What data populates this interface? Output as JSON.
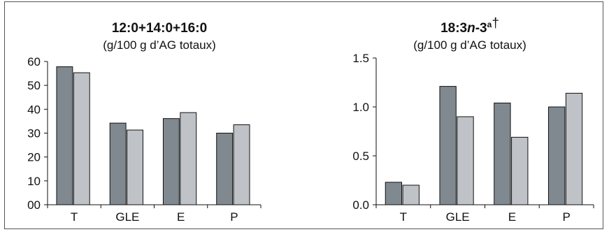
{
  "chart_data": [
    {
      "type": "bar",
      "title_main": "12:0+14:0+16:0",
      "subtitle": "(g/100 g d’AG totaux)",
      "categories": [
        "T",
        "GLE",
        "E",
        "P"
      ],
      "series": [
        {
          "values": [
            57.8,
            34.2,
            36.1,
            30.0
          ],
          "color": "#808890"
        },
        {
          "values": [
            55.3,
            31.3,
            38.6,
            33.5
          ],
          "color": "#bfc3c7"
        }
      ],
      "ylim": [
        0,
        60
      ],
      "yticks": [
        "00",
        "10",
        "20",
        "30",
        "40",
        "50",
        "60"
      ],
      "ytick_values": [
        0,
        10,
        20,
        30,
        40,
        50,
        60
      ]
    },
    {
      "type": "bar",
      "title_parts": {
        "pre": "18:3",
        "n": "n",
        "mid": "-3",
        "sup": "a",
        "dagger": "†"
      },
      "subtitle": "(g/100 g d’AG totaux)",
      "categories": [
        "T",
        "GLE",
        "E",
        "P"
      ],
      "series": [
        {
          "values": [
            0.23,
            1.21,
            1.04,
            1.0
          ],
          "color": "#808890"
        },
        {
          "values": [
            0.2,
            0.9,
            0.69,
            1.14
          ],
          "color": "#bfc3c7"
        }
      ],
      "ylim": [
        0,
        1.5
      ],
      "yticks": [
        "0.0",
        "0.5",
        "1.0",
        "1.5"
      ],
      "ytick_values": [
        0,
        0.5,
        1.0,
        1.5
      ]
    }
  ]
}
